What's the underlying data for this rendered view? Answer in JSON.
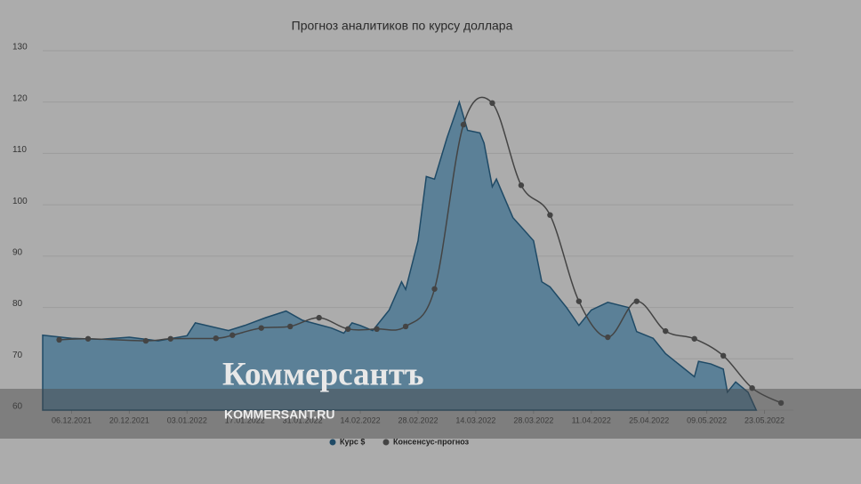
{
  "chart_data": {
    "type": "line",
    "title": "Прогноз аналитиков по курсу доллара",
    "xlim": [
      "29.11.2021",
      "30.05.2022"
    ],
    "xticks": [
      "06.12.2021",
      "20.12.2021",
      "03.01.2022",
      "17.01.2022",
      "31.01.2022",
      "14.02.2022",
      "28.02.2022",
      "14.03.2022",
      "28.03.2022",
      "11.04.2022",
      "25.04.2022",
      "09.05.2022",
      "23.05.2022"
    ],
    "ylim": [
      60,
      130
    ],
    "yticks": [
      60,
      70,
      80,
      90,
      100,
      110,
      120,
      130
    ],
    "grid": true,
    "legend": "bottom",
    "series": [
      {
        "name": "Курс $",
        "color": "#1f4a66",
        "fill": "#5b8097",
        "style": "area",
        "x": [
          "29.11.2021",
          "06.12.2021",
          "13.12.2021",
          "20.12.2021",
          "27.12.2021",
          "03.01.2022",
          "05.01.2022",
          "13.01.2022",
          "17.01.2022",
          "22.01.2022",
          "27.01.2022",
          "31.01.2022",
          "07.02.2022",
          "10.02.2022",
          "12.02.2022",
          "14.02.2022",
          "17.02.2022",
          "21.02.2022",
          "24.02.2022",
          "25.02.2022",
          "28.02.2022",
          "02.03.2022",
          "04.03.2022",
          "07.03.2022",
          "10.03.2022",
          "12.03.2022",
          "15.03.2022",
          "16.03.2022",
          "18.03.2022",
          "19.03.2022",
          "23.03.2022",
          "28.03.2022",
          "30.03.2022",
          "01.04.2022",
          "05.04.2022",
          "08.04.2022",
          "11.04.2022",
          "15.04.2022",
          "20.04.2022",
          "22.04.2022",
          "26.04.2022",
          "29.04.2022",
          "06.05.2022",
          "07.05.2022",
          "10.05.2022",
          "13.05.2022",
          "14.05.2022",
          "16.05.2022",
          "19.05.2022",
          "21.05.2022"
        ],
        "values": [
          74.6,
          74,
          73.8,
          74.2,
          73.5,
          74.5,
          77,
          75.5,
          76.5,
          78,
          79.3,
          77.5,
          76,
          75,
          77,
          76.5,
          75.5,
          79.5,
          85,
          83.5,
          93,
          105.5,
          105,
          113,
          120,
          114.5,
          114,
          112,
          103.5,
          105,
          97.5,
          93,
          85,
          84,
          80,
          76.5,
          79.5,
          81,
          80,
          75.3,
          74,
          71,
          66.5,
          69.5,
          69,
          68,
          63.5,
          65.5,
          63.5,
          60
        ]
      },
      {
        "name": "Консенсус-прогноз",
        "color": "#444444",
        "style": "spline",
        "x": [
          "03.12.2021",
          "10.12.2021",
          "24.12.2021",
          "30.12.2021",
          "10.01.2022",
          "14.01.2022",
          "21.01.2022",
          "28.01.2022",
          "04.02.2022",
          "11.02.2022",
          "18.02.2022",
          "25.02.2022",
          "04.03.2022",
          "11.03.2022",
          "18.03.2022",
          "25.03.2022",
          "01.04.2022",
          "08.04.2022",
          "15.04.2022",
          "22.04.2022",
          "29.04.2022",
          "06.05.2022",
          "13.05.2022",
          "20.05.2022",
          "27.05.2022"
        ],
        "values": [
          73.7,
          73.9,
          73.5,
          73.9,
          74,
          74.6,
          76,
          76.3,
          78,
          75.8,
          75.8,
          76.3,
          83.6,
          115.6,
          119.8,
          103.8,
          98,
          81.2,
          74.2,
          81.2,
          75.4,
          73.9,
          70.6,
          64.3,
          61.4
        ]
      }
    ],
    "watermark": {
      "logo": "Коммерсантъ",
      "url": "KOMMERSANT.RU"
    }
  }
}
